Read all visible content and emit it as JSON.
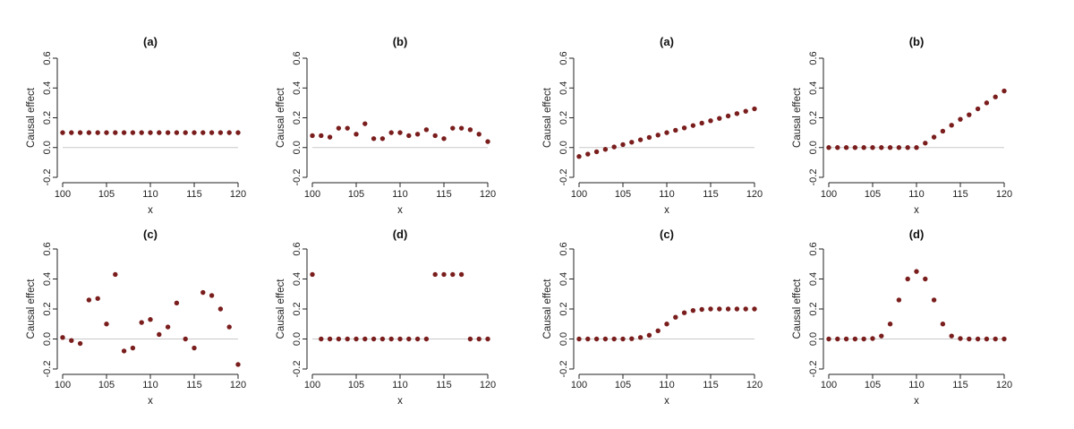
{
  "colors": {
    "points": "#7a1d1d",
    "axis": "#222222",
    "zero_line": "#c8c8c8"
  },
  "chart_data": [
    {
      "type": "scatter",
      "title": "(a)",
      "xlabel": "x",
      "ylabel": "Causal effect",
      "xlim": [
        100,
        120
      ],
      "ylim": [
        -0.2,
        0.6
      ],
      "xticks": [
        "100",
        "105",
        "110",
        "115",
        "120"
      ],
      "yticks": [
        "-0.2",
        "0.0",
        "0.2",
        "0.4",
        "0.6"
      ],
      "x": [
        100,
        101,
        102,
        103,
        104,
        105,
        106,
        107,
        108,
        109,
        110,
        111,
        112,
        113,
        114,
        115,
        116,
        117,
        118,
        119,
        120
      ],
      "y": [
        0.1,
        0.1,
        0.1,
        0.1,
        0.1,
        0.1,
        0.1,
        0.1,
        0.1,
        0.1,
        0.1,
        0.1,
        0.1,
        0.1,
        0.1,
        0.1,
        0.1,
        0.1,
        0.1,
        0.1,
        0.1
      ]
    },
    {
      "type": "scatter",
      "title": "(b)",
      "xlabel": "x",
      "ylabel": "Causal effect",
      "xlim": [
        100,
        120
      ],
      "ylim": [
        -0.2,
        0.6
      ],
      "xticks": [
        "100",
        "105",
        "110",
        "115",
        "120"
      ],
      "yticks": [
        "-0.2",
        "0.0",
        "0.2",
        "0.4",
        "0.6"
      ],
      "x": [
        100,
        101,
        102,
        103,
        104,
        105,
        106,
        107,
        108,
        109,
        110,
        111,
        112,
        113,
        114,
        115,
        116,
        117,
        118,
        119,
        120
      ],
      "y": [
        0.08,
        0.08,
        0.07,
        0.13,
        0.13,
        0.09,
        0.16,
        0.06,
        0.06,
        0.1,
        0.1,
        0.08,
        0.09,
        0.12,
        0.08,
        0.06,
        0.13,
        0.13,
        0.12,
        0.09,
        0.04
      ]
    },
    {
      "type": "scatter",
      "title": "(a)",
      "xlabel": "x",
      "ylabel": "Causal effect",
      "xlim": [
        100,
        120
      ],
      "ylim": [
        -0.2,
        0.6
      ],
      "xticks": [
        "100",
        "105",
        "110",
        "115",
        "120"
      ],
      "yticks": [
        "-0.2",
        "0.0",
        "0.2",
        "0.4",
        "0.6"
      ],
      "x": [
        100,
        101,
        102,
        103,
        104,
        105,
        106,
        107,
        108,
        109,
        110,
        111,
        112,
        113,
        114,
        115,
        116,
        117,
        118,
        119,
        120
      ],
      "y": [
        -0.06,
        -0.044,
        -0.028,
        -0.012,
        0.004,
        0.02,
        0.036,
        0.052,
        0.068,
        0.084,
        0.1,
        0.116,
        0.132,
        0.148,
        0.164,
        0.18,
        0.196,
        0.212,
        0.228,
        0.244,
        0.26
      ]
    },
    {
      "type": "scatter",
      "title": "(b)",
      "xlabel": "x",
      "ylabel": "Causal effect",
      "xlim": [
        100,
        120
      ],
      "ylim": [
        -0.2,
        0.6
      ],
      "xticks": [
        "100",
        "105",
        "110",
        "115",
        "120"
      ],
      "yticks": [
        "-0.2",
        "0.0",
        "0.2",
        "0.4",
        "0.6"
      ],
      "x": [
        100,
        101,
        102,
        103,
        104,
        105,
        106,
        107,
        108,
        109,
        110,
        111,
        112,
        113,
        114,
        115,
        116,
        117,
        118,
        119,
        120
      ],
      "y": [
        0,
        0,
        0,
        0,
        0,
        0,
        0,
        0,
        0,
        0,
        0,
        0.03,
        0.07,
        0.11,
        0.15,
        0.19,
        0.22,
        0.26,
        0.3,
        0.34,
        0.38
      ]
    },
    {
      "type": "scatter",
      "title": "(c)",
      "xlabel": "x",
      "ylabel": "Causal effect",
      "xlim": [
        100,
        120
      ],
      "ylim": [
        -0.2,
        0.6
      ],
      "xticks": [
        "100",
        "105",
        "110",
        "115",
        "120"
      ],
      "yticks": [
        "-0.2",
        "0.0",
        "0.2",
        "0.4",
        "0.6"
      ],
      "x": [
        100,
        101,
        102,
        103,
        104,
        105,
        106,
        107,
        108,
        109,
        110,
        111,
        112,
        113,
        114,
        115,
        116,
        117,
        118,
        119,
        120
      ],
      "y": [
        0.01,
        -0.01,
        -0.03,
        0.26,
        0.27,
        0.1,
        0.43,
        -0.08,
        -0.06,
        0.11,
        0.13,
        0.03,
        0.08,
        0.24,
        0.0,
        -0.06,
        0.31,
        0.29,
        0.2,
        0.08,
        -0.17
      ]
    },
    {
      "type": "scatter",
      "title": "(d)",
      "xlabel": "x",
      "ylabel": "Causal effect",
      "xlim": [
        100,
        120
      ],
      "ylim": [
        -0.2,
        0.6
      ],
      "xticks": [
        "100",
        "105",
        "110",
        "115",
        "120"
      ],
      "yticks": [
        "-0.2",
        "0.0",
        "0.2",
        "0.4",
        "0.6"
      ],
      "x": [
        100,
        101,
        102,
        103,
        104,
        105,
        106,
        107,
        108,
        109,
        110,
        111,
        112,
        113,
        114,
        115,
        116,
        117,
        118,
        119,
        120
      ],
      "y": [
        0.43,
        0,
        0,
        0,
        0,
        0,
        0,
        0,
        0,
        0,
        0,
        0,
        0,
        0,
        0.43,
        0.43,
        0.43,
        0.43,
        0,
        0,
        0
      ]
    },
    {
      "type": "scatter",
      "title": "(c)",
      "xlabel": "x",
      "ylabel": "Causal effect",
      "xlim": [
        100,
        120
      ],
      "ylim": [
        -0.2,
        0.6
      ],
      "xticks": [
        "100",
        "105",
        "110",
        "115",
        "120"
      ],
      "yticks": [
        "-0.2",
        "0.0",
        "0.2",
        "0.4",
        "0.6"
      ],
      "x": [
        100,
        101,
        102,
        103,
        104,
        105,
        106,
        107,
        108,
        109,
        110,
        111,
        112,
        113,
        114,
        115,
        116,
        117,
        118,
        119,
        120
      ],
      "y": [
        0,
        0,
        0,
        0,
        0,
        0,
        0.002,
        0.01,
        0.025,
        0.055,
        0.1,
        0.145,
        0.175,
        0.19,
        0.197,
        0.2,
        0.2,
        0.2,
        0.2,
        0.2,
        0.2
      ]
    },
    {
      "type": "scatter",
      "title": "(d)",
      "xlabel": "x",
      "ylabel": "Causal effect",
      "xlim": [
        100,
        120
      ],
      "ylim": [
        -0.2,
        0.6
      ],
      "xticks": [
        "100",
        "105",
        "110",
        "115",
        "120"
      ],
      "yticks": [
        "-0.2",
        "0.0",
        "0.2",
        "0.4",
        "0.6"
      ],
      "x": [
        100,
        101,
        102,
        103,
        104,
        105,
        106,
        107,
        108,
        109,
        110,
        111,
        112,
        113,
        114,
        115,
        116,
        117,
        118,
        119,
        120
      ],
      "y": [
        0,
        0,
        0,
        0,
        0,
        0.003,
        0.02,
        0.1,
        0.26,
        0.4,
        0.45,
        0.4,
        0.26,
        0.1,
        0.02,
        0.003,
        0,
        0,
        0,
        0,
        0
      ]
    }
  ]
}
